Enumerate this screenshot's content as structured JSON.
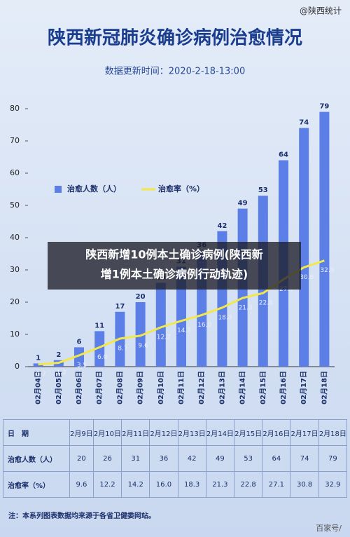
{
  "source_tag": "@陕西统计",
  "chart_data": {
    "type": "bar",
    "title": "陕西新冠肺炎确诊病例治愈情况",
    "subtitle": "数据更新时间：2020-2-18-13:00",
    "categories": [
      "02月04日",
      "02月05日",
      "02月06日",
      "02月07日",
      "02月08日",
      "02月09日",
      "02月10日",
      "02月11日",
      "02月12日",
      "02月13日",
      "02月14日",
      "02月15日",
      "02月16日",
      "02月17日",
      "02月18日"
    ],
    "series": [
      {
        "name": "治愈人数（人）",
        "type": "bar",
        "color": "#5b7fe6",
        "values": [
          1,
          2,
          6,
          11,
          17,
          20,
          26,
          31,
          36,
          42,
          49,
          53,
          64,
          74,
          79
        ]
      },
      {
        "name": "治愈率（%）",
        "type": "line",
        "color": "#f2e84a",
        "values": [
          0.7,
          1.2,
          3.5,
          6.0,
          8.7,
          9.6,
          12.2,
          14.2,
          16.0,
          18.3,
          21.3,
          22.8,
          27.1,
          30.8,
          32.9
        ],
        "value_labels": [
          "0.7",
          "1.2",
          "3.5",
          "6.0",
          "8.7",
          "9.6",
          "12.2",
          "14.2",
          "16.0",
          "18.3",
          "21.3",
          "22.8",
          "27.1",
          "30.8",
          "32.9"
        ]
      }
    ],
    "ylim": [
      0,
      80
    ],
    "yticks": [
      0,
      10,
      20,
      30,
      40,
      50,
      60,
      70,
      80
    ]
  },
  "overlay_caption": [
    "陕西新增10例本土确诊病例(陕西新",
    "增1例本土确诊病例行动轨迹)"
  ],
  "table": {
    "header": [
      "日　期",
      "2月9日",
      "2月10日",
      "2月11日",
      "2月12日",
      "2月13日",
      "2月14日",
      "2月15日",
      "2月16日",
      "2月17日",
      "2月18日"
    ],
    "rows": [
      [
        "治愈人数（人）",
        "20",
        "26",
        "31",
        "36",
        "42",
        "49",
        "53",
        "64",
        "74",
        "79"
      ],
      [
        "治愈率（%）",
        "9.6",
        "12.2",
        "14.2",
        "16.0",
        "18.3",
        "21.3",
        "22.8",
        "27.1",
        "30.8",
        "32.9"
      ]
    ]
  },
  "footnote": "注：本系列图表数据均来源于各省卫健委网站。",
  "watermark": "百家号/"
}
